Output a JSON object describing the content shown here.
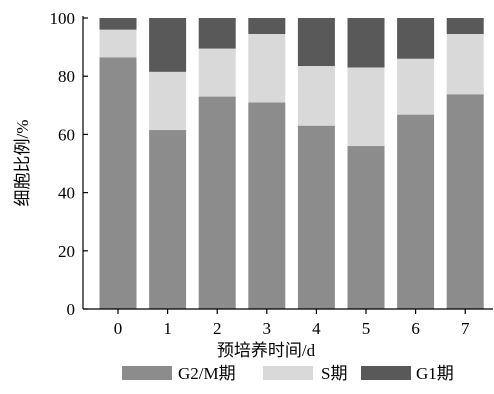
{
  "chart_data": {
    "type": "bar",
    "stacked": true,
    "categories": [
      "0",
      "1",
      "2",
      "3",
      "4",
      "5",
      "6",
      "7"
    ],
    "series": [
      {
        "name": "G2/M期",
        "values": [
          86.5,
          61.5,
          73.0,
          71.0,
          63.0,
          56.0,
          66.8,
          73.8
        ],
        "color": "#8c8c8c"
      },
      {
        "name": "S期",
        "values": [
          9.5,
          20.0,
          16.5,
          23.5,
          20.5,
          27.0,
          19.2,
          20.7
        ],
        "color": "#d9d9d9"
      },
      {
        "name": "G1期",
        "values": [
          4.0,
          18.5,
          10.5,
          5.5,
          16.5,
          17.0,
          14.0,
          5.5
        ],
        "color": "#595959"
      }
    ],
    "xlabel": "预培养时间/d",
    "ylabel": "细胞比例/%",
    "ylim": [
      0,
      100
    ],
    "yticks": [
      "0",
      "20",
      "40",
      "60",
      "80",
      "100"
    ],
    "grid": false,
    "legend_position": "bottom"
  }
}
